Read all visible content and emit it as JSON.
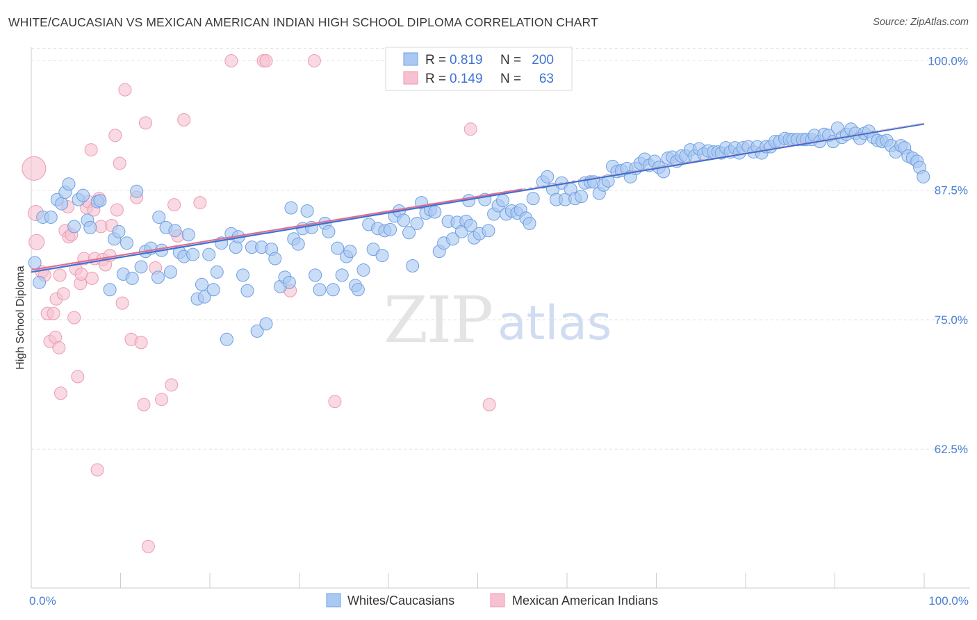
{
  "title": "WHITE/CAUCASIAN VS MEXICAN AMERICAN INDIAN HIGH SCHOOL DIPLOMA CORRELATION CHART",
  "source": "Source: ZipAtlas.com",
  "watermark": {
    "part1": "ZIP",
    "part2": "atlas"
  },
  "colors": {
    "blue_fill": "#a9c8f2",
    "blue_stroke": "#6f9fe0",
    "blue_line": "#3a72d1",
    "pink_fill": "#f6c1d1",
    "pink_stroke": "#ee9ab3",
    "pink_line": "#e06e92",
    "axis_text": "#4a7fd1",
    "grid": "#dddddd"
  },
  "legend": {
    "rows": [
      {
        "r_label": "R =",
        "r_value": "0.819",
        "n_label": "N =",
        "n_value": "200",
        "color": "blue"
      },
      {
        "r_label": "R =",
        "r_value": "0.149",
        "n_label": "N =",
        "n_value": "63",
        "color": "pink"
      }
    ]
  },
  "bottom_legend": [
    "Whites/Caucasians",
    "Mexican American Indians"
  ],
  "chart_data": {
    "type": "scatter",
    "title": "WHITE/CAUCASIAN VS MEXICAN AMERICAN INDIAN HIGH SCHOOL DIPLOMA CORRELATION CHART",
    "xlabel": "",
    "ylabel": "High School Diploma",
    "xlim": [
      0,
      100
    ],
    "ylim": [
      50.3,
      100.5
    ],
    "x_tick_labels": [
      "0.0%",
      "100.0%"
    ],
    "y_ticks": [
      100.0,
      87.5,
      75.0,
      62.5
    ],
    "y_tick_labels": [
      "100.0%",
      "87.5%",
      "75.0%",
      "62.5%"
    ],
    "grid": true,
    "legend_position": "top-center",
    "series": [
      {
        "name": "Whites/Caucasians",
        "color": "blue",
        "trend": {
          "x": [
            0,
            100
          ],
          "y": [
            79.6,
            93.9
          ]
        },
        "points": [
          [
            0.4,
            80.5
          ],
          [
            0.9,
            78.6
          ],
          [
            1.3,
            84.9
          ],
          [
            2.2,
            84.9
          ],
          [
            2.9,
            86.6
          ],
          [
            3.4,
            86.2
          ],
          [
            3.8,
            87.3
          ],
          [
            4.2,
            88.1
          ],
          [
            4.8,
            84.0
          ],
          [
            5.3,
            86.6
          ],
          [
            5.8,
            87.0
          ],
          [
            6.3,
            84.6
          ],
          [
            6.6,
            83.9
          ],
          [
            7.4,
            86.4
          ],
          [
            7.7,
            86.5
          ],
          [
            8.8,
            77.9
          ],
          [
            9.3,
            82.8
          ],
          [
            9.8,
            83.5
          ],
          [
            10.3,
            79.4
          ],
          [
            10.7,
            82.4
          ],
          [
            11.3,
            79.0
          ],
          [
            11.8,
            87.4
          ],
          [
            12.3,
            80.1
          ],
          [
            12.8,
            81.6
          ],
          [
            13.4,
            81.9
          ],
          [
            14.3,
            84.9
          ],
          [
            14.6,
            81.7
          ],
          [
            15.1,
            83.9
          ],
          [
            15.6,
            79.6
          ],
          [
            16.1,
            83.6
          ],
          [
            16.6,
            81.5
          ],
          [
            17.1,
            81.1
          ],
          [
            17.6,
            83.2
          ],
          [
            18.1,
            81.3
          ],
          [
            18.6,
            77.0
          ],
          [
            19.1,
            78.4
          ],
          [
            19.4,
            77.2
          ],
          [
            19.9,
            81.3
          ],
          [
            20.4,
            77.9
          ],
          [
            20.8,
            79.6
          ],
          [
            21.3,
            82.4
          ],
          [
            21.9,
            73.1
          ],
          [
            22.4,
            83.3
          ],
          [
            22.9,
            82.0
          ],
          [
            23.2,
            83.0
          ],
          [
            23.7,
            79.3
          ],
          [
            24.2,
            77.8
          ],
          [
            24.7,
            82.0
          ],
          [
            25.3,
            73.9
          ],
          [
            25.8,
            82.0
          ],
          [
            26.3,
            74.6
          ],
          [
            26.9,
            81.8
          ],
          [
            27.3,
            80.9
          ],
          [
            27.9,
            78.2
          ],
          [
            28.4,
            79.1
          ],
          [
            28.9,
            78.6
          ],
          [
            29.4,
            82.8
          ],
          [
            29.9,
            82.3
          ],
          [
            30.4,
            83.8
          ],
          [
            30.9,
            85.5
          ],
          [
            31.4,
            83.9
          ],
          [
            31.8,
            79.3
          ],
          [
            32.3,
            77.9
          ],
          [
            32.9,
            84.3
          ],
          [
            33.3,
            83.5
          ],
          [
            33.8,
            77.9
          ],
          [
            34.3,
            81.9
          ],
          [
            34.8,
            79.3
          ],
          [
            35.3,
            81.1
          ],
          [
            35.7,
            81.6
          ],
          [
            36.3,
            78.3
          ],
          [
            36.6,
            77.9
          ],
          [
            37.2,
            79.8
          ],
          [
            37.8,
            84.2
          ],
          [
            38.3,
            81.8
          ],
          [
            38.8,
            83.8
          ],
          [
            39.3,
            81.2
          ],
          [
            39.6,
            83.6
          ],
          [
            40.2,
            83.7
          ],
          [
            40.7,
            85.0
          ],
          [
            41.2,
            85.5
          ],
          [
            41.7,
            84.6
          ],
          [
            42.3,
            83.4
          ],
          [
            42.7,
            80.2
          ],
          [
            43.2,
            84.3
          ],
          [
            43.7,
            86.3
          ],
          [
            44.2,
            85.3
          ],
          [
            44.7,
            85.6
          ],
          [
            45.2,
            85.4
          ],
          [
            45.7,
            81.6
          ],
          [
            46.2,
            82.4
          ],
          [
            46.7,
            84.5
          ],
          [
            47.2,
            82.8
          ],
          [
            47.7,
            84.4
          ],
          [
            48.2,
            83.5
          ],
          [
            48.7,
            84.5
          ],
          [
            49.2,
            84.1
          ],
          [
            49.6,
            82.9
          ],
          [
            50.2,
            83.3
          ],
          [
            50.8,
            86.6
          ],
          [
            51.2,
            83.6
          ],
          [
            51.8,
            85.2
          ],
          [
            52.3,
            86.0
          ],
          [
            52.8,
            86.5
          ],
          [
            53.2,
            85.2
          ],
          [
            53.8,
            85.5
          ],
          [
            54.4,
            85.3
          ],
          [
            54.8,
            85.6
          ],
          [
            55.4,
            84.8
          ],
          [
            56.2,
            86.7
          ],
          [
            57.3,
            88.3
          ],
          [
            57.8,
            88.8
          ],
          [
            58.4,
            87.6
          ],
          [
            58.8,
            86.6
          ],
          [
            59.4,
            88.2
          ],
          [
            59.8,
            86.6
          ],
          [
            60.4,
            87.6
          ],
          [
            60.9,
            86.7
          ],
          [
            61.6,
            86.9
          ],
          [
            62.0,
            88.2
          ],
          [
            62.6,
            88.3
          ],
          [
            63.0,
            88.3
          ],
          [
            63.6,
            87.2
          ],
          [
            64.1,
            88.0
          ],
          [
            64.6,
            88.4
          ],
          [
            65.1,
            89.8
          ],
          [
            65.6,
            89.3
          ],
          [
            66.1,
            89.4
          ],
          [
            66.7,
            89.6
          ],
          [
            67.1,
            88.8
          ],
          [
            67.7,
            89.6
          ],
          [
            68.2,
            90.1
          ],
          [
            68.7,
            90.5
          ],
          [
            69.2,
            89.9
          ],
          [
            69.8,
            90.3
          ],
          [
            70.3,
            89.7
          ],
          [
            70.8,
            89.3
          ],
          [
            71.3,
            90.6
          ],
          [
            71.8,
            90.7
          ],
          [
            72.3,
            90.3
          ],
          [
            72.8,
            90.8
          ],
          [
            73.3,
            90.8
          ],
          [
            73.8,
            91.4
          ],
          [
            74.3,
            90.8
          ],
          [
            74.8,
            91.5
          ],
          [
            75.3,
            91.0
          ],
          [
            75.8,
            91.3
          ],
          [
            76.4,
            91.2
          ],
          [
            76.9,
            91.2
          ],
          [
            77.3,
            91.1
          ],
          [
            77.8,
            91.6
          ],
          [
            78.3,
            91.2
          ],
          [
            78.8,
            91.6
          ],
          [
            79.3,
            91.1
          ],
          [
            79.7,
            91.6
          ],
          [
            80.3,
            91.7
          ],
          [
            80.9,
            91.2
          ],
          [
            81.3,
            91.7
          ],
          [
            81.8,
            91.1
          ],
          [
            82.3,
            91.7
          ],
          [
            82.8,
            91.7
          ],
          [
            83.3,
            92.2
          ],
          [
            83.8,
            92.2
          ],
          [
            84.4,
            92.5
          ],
          [
            84.9,
            92.4
          ],
          [
            85.3,
            92.4
          ],
          [
            85.8,
            92.4
          ],
          [
            86.4,
            92.4
          ],
          [
            86.8,
            92.4
          ],
          [
            87.4,
            92.4
          ],
          [
            87.7,
            92.8
          ],
          [
            88.3,
            92.2
          ],
          [
            88.8,
            92.9
          ],
          [
            89.3,
            92.8
          ],
          [
            89.8,
            92.2
          ],
          [
            90.3,
            93.5
          ],
          [
            90.8,
            92.6
          ],
          [
            91.3,
            92.9
          ],
          [
            91.8,
            93.4
          ],
          [
            92.3,
            93.0
          ],
          [
            92.8,
            92.5
          ],
          [
            93.3,
            93.0
          ],
          [
            93.8,
            93.2
          ],
          [
            94.3,
            92.6
          ],
          [
            94.8,
            92.3
          ],
          [
            95.3,
            92.2
          ],
          [
            95.8,
            92.3
          ],
          [
            96.3,
            91.8
          ],
          [
            96.8,
            91.2
          ],
          [
            97.4,
            91.8
          ],
          [
            97.8,
            91.6
          ],
          [
            98.2,
            90.8
          ],
          [
            98.7,
            90.6
          ],
          [
            99.2,
            90.3
          ],
          [
            99.5,
            89.7
          ],
          [
            99.9,
            88.8
          ],
          [
            49.0,
            86.5
          ],
          [
            55.8,
            84.3
          ],
          [
            29.1,
            85.8
          ],
          [
            14.2,
            79.1
          ]
        ]
      },
      {
        "name": "Mexican American Indians",
        "color": "pink",
        "trend": {
          "x": [
            0,
            55
          ],
          "y": [
            79.8,
            87.6
          ]
        },
        "points": [
          [
            0.3,
            89.6
          ],
          [
            0.5,
            85.3
          ],
          [
            0.6,
            82.5
          ],
          [
            1.2,
            79.6
          ],
          [
            1.5,
            79.3
          ],
          [
            1.8,
            75.6
          ],
          [
            2.1,
            72.9
          ],
          [
            2.5,
            75.6
          ],
          [
            2.7,
            73.3
          ],
          [
            2.8,
            77.0
          ],
          [
            3.2,
            79.3
          ],
          [
            3.3,
            67.9
          ],
          [
            3.6,
            77.5
          ],
          [
            3.8,
            83.6
          ],
          [
            4.1,
            85.9
          ],
          [
            4.2,
            83.0
          ],
          [
            4.5,
            83.2
          ],
          [
            4.8,
            75.2
          ],
          [
            5.0,
            79.9
          ],
          [
            5.2,
            69.5
          ],
          [
            5.5,
            78.5
          ],
          [
            5.6,
            79.4
          ],
          [
            5.9,
            80.9
          ],
          [
            6.2,
            85.8
          ],
          [
            6.4,
            86.4
          ],
          [
            6.7,
            91.4
          ],
          [
            7.0,
            85.6
          ],
          [
            7.1,
            80.9
          ],
          [
            7.6,
            86.7
          ],
          [
            7.8,
            84.0
          ],
          [
            8.0,
            80.8
          ],
          [
            8.3,
            80.3
          ],
          [
            8.8,
            81.2
          ],
          [
            9.0,
            84.1
          ],
          [
            9.4,
            92.8
          ],
          [
            9.6,
            85.6
          ],
          [
            9.9,
            90.1
          ],
          [
            10.2,
            76.6
          ],
          [
            10.5,
            97.2
          ],
          [
            11.2,
            73.1
          ],
          [
            11.8,
            86.8
          ],
          [
            12.3,
            72.8
          ],
          [
            12.6,
            66.8
          ],
          [
            12.8,
            94.0
          ],
          [
            13.1,
            53.1
          ],
          [
            13.9,
            80.0
          ],
          [
            14.6,
            67.3
          ],
          [
            15.7,
            68.7
          ],
          [
            16.0,
            86.1
          ],
          [
            17.1,
            94.3
          ],
          [
            18.9,
            86.3
          ],
          [
            22.4,
            100.0
          ],
          [
            26.0,
            100.0
          ],
          [
            26.3,
            100.0
          ],
          [
            29.0,
            77.8
          ],
          [
            31.7,
            100.0
          ],
          [
            34.0,
            67.1
          ],
          [
            49.2,
            93.4
          ],
          [
            51.3,
            66.8
          ],
          [
            7.4,
            60.5
          ],
          [
            3.1,
            72.3
          ],
          [
            6.8,
            79.0
          ],
          [
            16.4,
            83.1
          ]
        ]
      }
    ]
  }
}
